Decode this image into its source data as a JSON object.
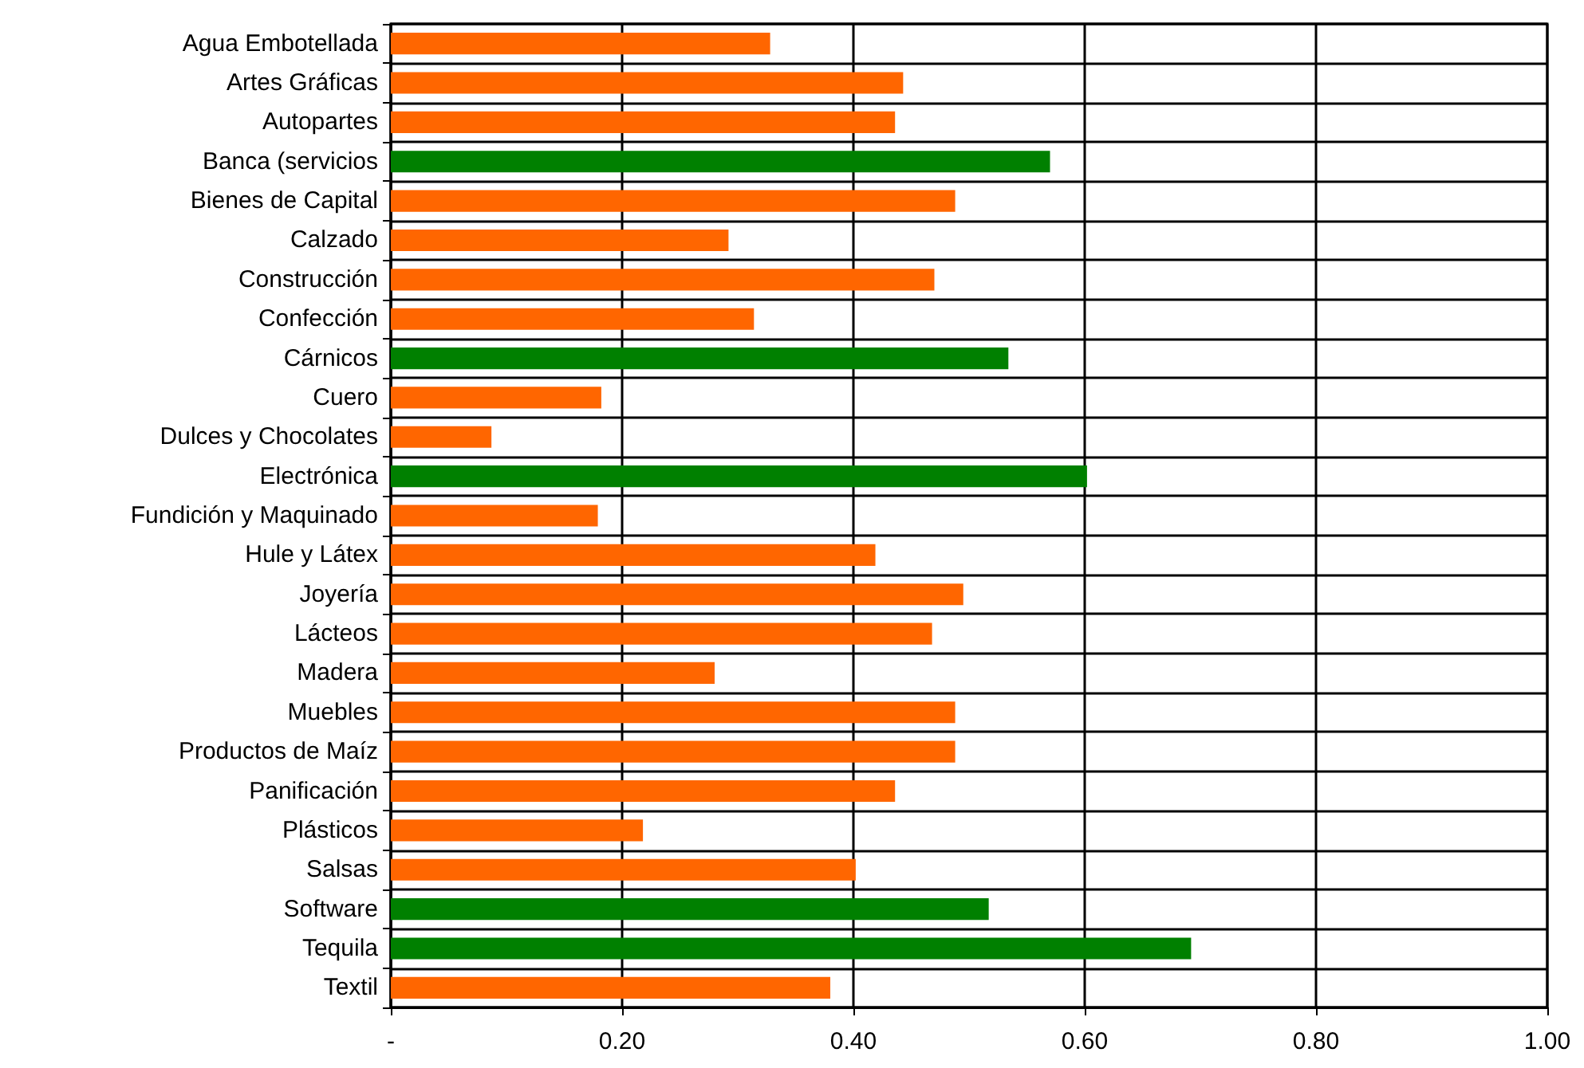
{
  "chart_data": {
    "type": "bar",
    "orientation": "horizontal",
    "categories": [
      "Agua Embotellada",
      "Artes Gráficas",
      "Autopartes",
      "Banca (servicios",
      "Bienes de Capital",
      "Calzado",
      "Construcción",
      "Confección",
      "Cárnicos",
      "Cuero",
      "Dulces y Chocolates",
      "Electrónica",
      "Fundición y Maquinado",
      "Hule y Látex",
      "Joyería",
      "Lácteos",
      "Madera",
      "Muebles",
      "Productos de Maíz",
      "Panificación",
      "Plásticos",
      "Salsas",
      "Software",
      "Tequila",
      "Textil"
    ],
    "values": [
      0.328,
      0.443,
      0.436,
      0.57,
      0.488,
      0.292,
      0.47,
      0.314,
      0.534,
      0.182,
      0.087,
      0.602,
      0.179,
      0.419,
      0.495,
      0.468,
      0.28,
      0.488,
      0.488,
      0.436,
      0.218,
      0.402,
      0.517,
      0.692,
      0.38
    ],
    "colors": [
      "#ff6600",
      "#ff6600",
      "#ff6600",
      "#008000",
      "#ff6600",
      "#ff6600",
      "#ff6600",
      "#ff6600",
      "#008000",
      "#ff6600",
      "#ff6600",
      "#008000",
      "#ff6600",
      "#ff6600",
      "#ff6600",
      "#ff6600",
      "#ff6600",
      "#ff6600",
      "#ff6600",
      "#ff6600",
      "#ff6600",
      "#ff6600",
      "#008000",
      "#008000",
      "#ff6600"
    ],
    "xlim": [
      0,
      1
    ],
    "xticks": [
      {
        "value": 0,
        "label": "-"
      },
      {
        "value": 0.2,
        "label": "0.20"
      },
      {
        "value": 0.4,
        "label": "0.40"
      },
      {
        "value": 0.6,
        "label": "0.60"
      },
      {
        "value": 0.8,
        "label": "0.80"
      },
      {
        "value": 1,
        "label": "1.00"
      }
    ],
    "grid": true
  }
}
